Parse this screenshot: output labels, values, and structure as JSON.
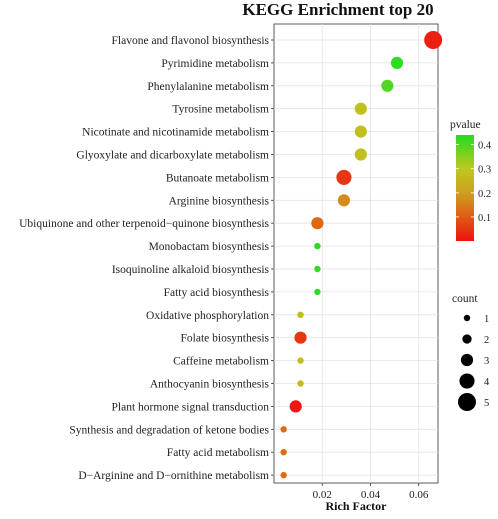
{
  "chart_data": {
    "type": "scatter",
    "title": "KEGG Enrichment top 20",
    "xlabel": "Rich Factor",
    "ylabel": "",
    "xlim": [
      0,
      0.068
    ],
    "xticks": [
      0.02,
      0.04,
      0.06
    ],
    "xtick_labels": [
      "0.02",
      "0.04",
      "0.06"
    ],
    "grid": true,
    "categories": [
      "Flavone and flavonol biosynthesis",
      "Pyrimidine metabolism",
      "Phenylalanine metabolism",
      "Tyrosine metabolism",
      "Nicotinate and nicotinamide metabolism",
      "Glyoxylate and dicarboxylate metabolism",
      "Butanoate metabolism",
      "Arginine biosynthesis",
      "Ubiquinone and other terpenoid−quinone biosynthesis",
      "Monobactam biosynthesis",
      "Isoquinoline alkaloid biosynthesis",
      "Fatty acid biosynthesis",
      "Oxidative phosphorylation",
      "Folate biosynthesis",
      "Caffeine metabolism",
      "Anthocyanin biosynthesis",
      "Plant hormone signal transduction",
      "Synthesis and degradation of ketone bodies",
      "Fatty acid metabolism",
      "D−Arginine and D−ornithine metabolism"
    ],
    "points": [
      {
        "rich_factor": 0.066,
        "count": 5,
        "pvalue": 0.02
      },
      {
        "rich_factor": 0.051,
        "count": 3,
        "pvalue": 0.43
      },
      {
        "rich_factor": 0.047,
        "count": 3,
        "pvalue": 0.4
      },
      {
        "rich_factor": 0.036,
        "count": 3,
        "pvalue": 0.28
      },
      {
        "rich_factor": 0.036,
        "count": 3,
        "pvalue": 0.28
      },
      {
        "rich_factor": 0.036,
        "count": 3,
        "pvalue": 0.28
      },
      {
        "rich_factor": 0.029,
        "count": 4,
        "pvalue": 0.05
      },
      {
        "rich_factor": 0.029,
        "count": 3,
        "pvalue": 0.17
      },
      {
        "rich_factor": 0.018,
        "count": 3,
        "pvalue": 0.12
      },
      {
        "rich_factor": 0.018,
        "count": 1,
        "pvalue": 0.43
      },
      {
        "rich_factor": 0.018,
        "count": 1,
        "pvalue": 0.43
      },
      {
        "rich_factor": 0.018,
        "count": 1,
        "pvalue": 0.43
      },
      {
        "rich_factor": 0.011,
        "count": 1,
        "pvalue": 0.27
      },
      {
        "rich_factor": 0.011,
        "count": 3,
        "pvalue": 0.05
      },
      {
        "rich_factor": 0.011,
        "count": 1,
        "pvalue": 0.27
      },
      {
        "rich_factor": 0.011,
        "count": 1,
        "pvalue": 0.27
      },
      {
        "rich_factor": 0.009,
        "count": 3,
        "pvalue": 0.01
      },
      {
        "rich_factor": 0.004,
        "count": 1,
        "pvalue": 0.13
      },
      {
        "rich_factor": 0.004,
        "count": 1,
        "pvalue": 0.13
      },
      {
        "rich_factor": 0.004,
        "count": 1,
        "pvalue": 0.13
      }
    ],
    "legend": {
      "color": {
        "title": "pvalue",
        "ticks": [
          0.1,
          0.2,
          0.3,
          0.4
        ],
        "tick_labels": [
          "0.1",
          "0.2",
          "0.3",
          "0.4"
        ],
        "range": [
          0.0,
          0.44
        ],
        "low_color": "#ee1111",
        "mid_color": "#c8b820",
        "high_color": "#22dd22"
      },
      "size": {
        "title": "count",
        "values": [
          1,
          2,
          3,
          4,
          5
        ],
        "labels": [
          "1",
          "2",
          "3",
          "4",
          "5"
        ]
      },
      "placement": "right"
    }
  }
}
